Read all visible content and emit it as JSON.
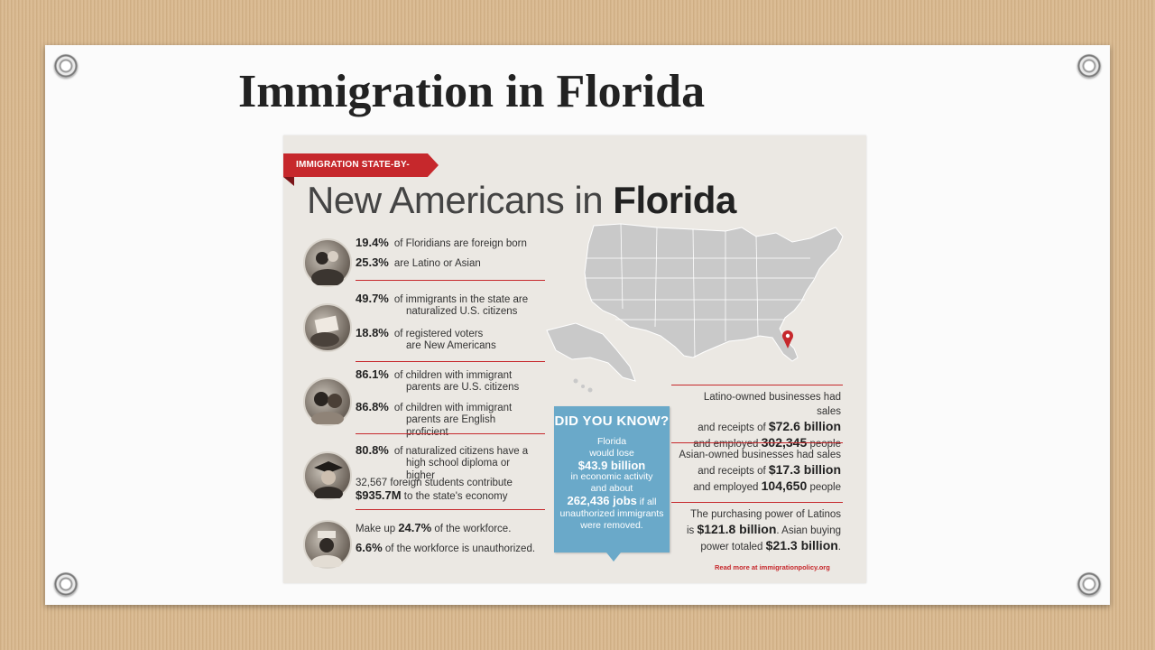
{
  "slide": {
    "title": "Immigration in Florida"
  },
  "infographic": {
    "banner": "IMMIGRATION STATE-BY-STATE",
    "heading_prefix": "New Americans in",
    "heading_state": "Florida",
    "stats": [
      {
        "num": "19.4%",
        "text": "of Floridians are foreign born"
      },
      {
        "num": "25.3%",
        "text": "are Latino or Asian"
      },
      {
        "num": "49.7%",
        "text": "of immigrants in the state are",
        "text2": "naturalized U.S. citizens"
      },
      {
        "num": "18.8%",
        "text": "of registered voters",
        "text2": "are New Americans"
      },
      {
        "num": "86.1%",
        "text": "of children with immigrant",
        "text2": "parents are U.S. citizens"
      },
      {
        "num": "86.8%",
        "text": "of children with immigrant",
        "text2": "parents are English proficient"
      },
      {
        "num": "80.8%",
        "text": "of naturalized citizens have a",
        "text2": "high school diploma or higher"
      },
      {
        "text": "32,567 foreign students contribute",
        "big": "$935.7M",
        "text2": "to the state's economy"
      },
      {
        "pre": "Make up",
        "big": "24.7%",
        "post": "of the workforce."
      },
      {
        "big": "6.6%",
        "post": "of the workforce is unauthorized."
      }
    ],
    "did_you_know": {
      "title": "DID YOU KNOW?",
      "l1": "Florida",
      "l2": "would lose",
      "big1": "$43.9 billion",
      "l3": "in economic activity",
      "l4": "and about",
      "big2": "262,436 jobs",
      "l5": "if all",
      "l6": "unauthorized immigrants",
      "l7": "were removed."
    },
    "right": {
      "latino_1": "Latino-owned businesses had sales",
      "latino_2": "and receipts of",
      "latino_big": "$72.6 billion",
      "latino_3": "and employed",
      "latino_big2": "302,345",
      "latino_4": "people",
      "asian_1": "Asian-owned businesses had sales",
      "asian_2": "and receipts of",
      "asian_big": "$17.3 billion",
      "asian_3": "and employed",
      "asian_big2": "104,650",
      "asian_4": "people",
      "power_1": "The purchasing power of Latinos",
      "power_2": "is",
      "power_big": "$121.8 billion",
      "power_3": ". Asian buying",
      "power_4": "power totaled",
      "power_big2": "$21.3 billion",
      "power_5": "."
    },
    "read_more": "Read more at immigrationpolicy.org"
  },
  "colors": {
    "accent_red": "#c6282c",
    "callout_blue": "#6aa9c9",
    "map_gray": "#c9c9c9"
  }
}
